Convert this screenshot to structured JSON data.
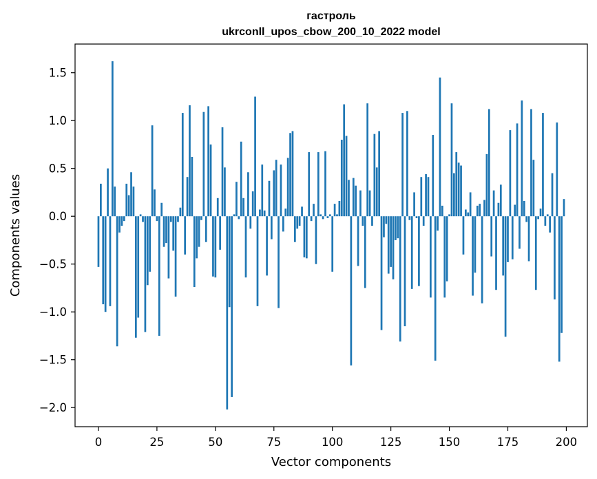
{
  "chart_data": {
    "type": "bar",
    "title": "гастроль",
    "subtitle": "ukrconll_upos_cbow_200_10_2022 model",
    "xlabel": "Vector components",
    "ylabel": "Components values",
    "xlim": [
      -10,
      209
    ],
    "ylim": [
      -2.2,
      1.8
    ],
    "xticks": [
      0,
      25,
      50,
      75,
      100,
      125,
      150,
      175,
      200
    ],
    "xtick_labels": [
      "0",
      "25",
      "50",
      "75",
      "100",
      "125",
      "150",
      "175",
      "200"
    ],
    "yticks": [
      -2.0,
      -1.5,
      -1.0,
      -0.5,
      0.0,
      0.5,
      1.0,
      1.5
    ],
    "ytick_labels": [
      "−2.0",
      "−1.5",
      "−1.0",
      "−0.5",
      "0.0",
      "0.5",
      "1.0",
      "1.5"
    ],
    "bar_color": "#1f77b4",
    "series": [
      {
        "name": "гастроль",
        "x_start": 0,
        "values": [
          -0.53,
          0.34,
          -0.92,
          -1.0,
          0.5,
          -0.94,
          1.62,
          0.31,
          -1.36,
          -0.17,
          -0.1,
          -0.05,
          0.34,
          0.22,
          0.46,
          0.31,
          -1.27,
          -1.06,
          0.02,
          -0.06,
          -1.21,
          -0.72,
          -0.58,
          0.95,
          0.28,
          -0.05,
          -1.25,
          0.14,
          -0.32,
          -0.28,
          -0.65,
          -0.06,
          -0.36,
          -0.84,
          -0.06,
          0.09,
          1.08,
          -0.4,
          0.41,
          1.16,
          0.62,
          -0.74,
          -0.44,
          -0.32,
          -0.04,
          1.09,
          -0.27,
          1.15,
          0.75,
          -0.63,
          -0.64,
          0.19,
          -0.35,
          0.93,
          0.51,
          -2.02,
          -0.95,
          -1.89,
          0.02,
          0.36,
          -0.03,
          0.78,
          0.19,
          -0.64,
          0.46,
          -0.13,
          0.26,
          1.25,
          -0.94,
          0.07,
          0.54,
          0.06,
          -0.62,
          0.37,
          -0.24,
          0.48,
          0.59,
          -0.96,
          0.54,
          -0.16,
          0.08,
          0.61,
          0.87,
          0.89,
          -0.27,
          -0.13,
          -0.1,
          0.1,
          -0.43,
          -0.44,
          0.67,
          -0.05,
          0.13,
          -0.5,
          0.67,
          0.02,
          -0.03,
          0.68,
          -0.02,
          0.02,
          -0.58,
          0.13,
          0.02,
          0.16,
          0.8,
          1.17,
          0.84,
          0.38,
          -1.56,
          0.4,
          0.32,
          -0.52,
          0.27,
          -0.1,
          -0.75,
          1.18,
          0.27,
          -0.1,
          0.86,
          0.51,
          0.89,
          -1.19,
          -0.22,
          -0.08,
          -0.6,
          -0.53,
          -0.66,
          -0.25,
          -0.23,
          -1.31,
          1.08,
          -1.15,
          1.1,
          -0.04,
          -0.76,
          0.25,
          -0.02,
          -0.73,
          0.41,
          -0.1,
          0.44,
          0.41,
          -0.85,
          0.85,
          -1.51,
          -0.15,
          1.45,
          0.11,
          -0.85,
          -0.68,
          0.02,
          1.18,
          0.45,
          0.67,
          0.56,
          0.53,
          -0.4,
          0.07,
          0.04,
          0.25,
          -0.83,
          -0.59,
          0.11,
          0.13,
          -0.91,
          0.17,
          0.65,
          1.12,
          -0.42,
          0.27,
          -0.77,
          0.14,
          0.33,
          -0.62,
          -1.26,
          -0.48,
          0.9,
          -0.45,
          0.12,
          0.97,
          -0.34,
          1.21,
          0.16,
          -0.06,
          -0.47,
          1.12,
          0.59,
          -0.77,
          -0.03,
          0.08,
          1.08,
          -0.1,
          0.02,
          -0.17,
          0.45,
          -0.87,
          0.98,
          -1.52,
          -1.22,
          0.18
        ]
      }
    ]
  }
}
